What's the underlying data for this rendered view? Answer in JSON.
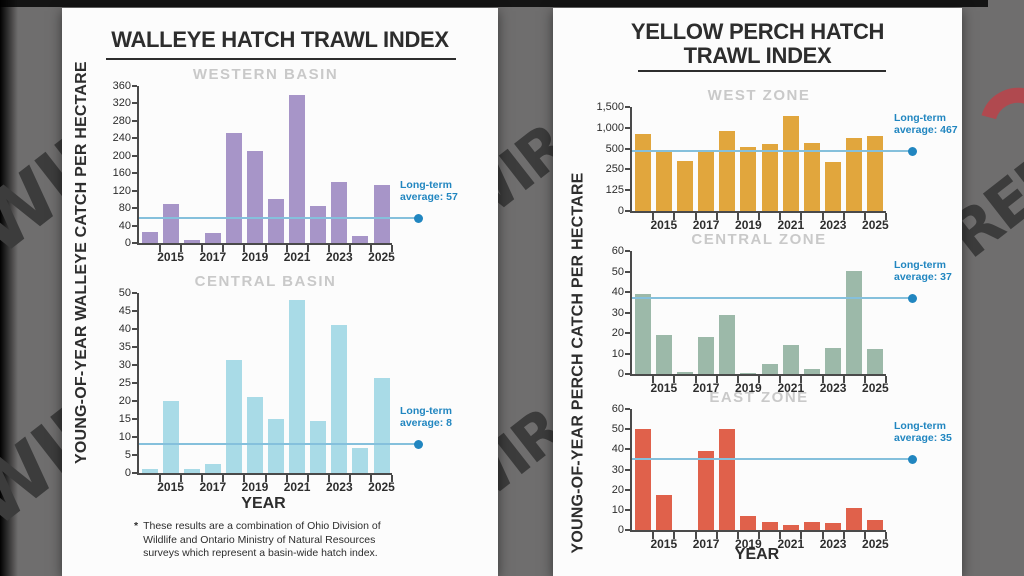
{
  "background": {
    "color": "#6f6e6e",
    "top_strip_color": "#141414",
    "watermark_text": "WIRED",
    "watermark_color": "#3c3c3c",
    "watermark_fragments": [
      "WIR",
      "WIR",
      "WIR",
      "WIR",
      "RED"
    ],
    "swoosh_color": "#b0494f"
  },
  "style": {
    "panel_bg": "#fcfcfc",
    "axis_color": "#4a4a4a",
    "text_dark": "#2d2d2d",
    "zone_title_color": "#c9c9c9",
    "avg_text_color": "#2186c0",
    "avg_line_color": "#85c0dc"
  },
  "left_panel": {
    "title": "WALLEYE HATCH TRAWL INDEX",
    "ylabel": "YOUNG-OF-YEAR WALLEYE CATCH PER HECTARE",
    "xlabel": "YEAR",
    "footnote_marker": "*",
    "footnote": "These results are a combination of Ohio Division of Wildlife and Ontario Ministry of Natural Resources surveys which represent a basin-wide hatch index."
  },
  "right_panel": {
    "title_line1": "YELLOW PERCH HATCH",
    "title_line2": "TRAWL INDEX",
    "ylabel": "YOUNG-OF-YEAR PERCH CATCH PER HECTARE",
    "xlabel": "YEAR"
  },
  "chart_data": [
    {
      "id": "western_basin",
      "type": "bar",
      "panel": "left",
      "title": "WESTERN BASIN",
      "x": [
        2014,
        2015,
        2016,
        2017,
        2018,
        2019,
        2020,
        2021,
        2022,
        2023,
        2024,
        2025
      ],
      "values": [
        26,
        90,
        7,
        24,
        253,
        212,
        100,
        340,
        85,
        140,
        15,
        132
      ],
      "scale": "linear",
      "ylim": [
        0,
        360
      ],
      "yticks": [
        0,
        40,
        80,
        120,
        160,
        200,
        240,
        280,
        320,
        360
      ],
      "ytick_labels": [
        "0",
        "40",
        "80",
        "120",
        "160",
        "200",
        "240",
        "280",
        "320",
        "360"
      ],
      "x_tick_labels": [
        "2015",
        "2017",
        "2019",
        "2021",
        "2023",
        "2025"
      ],
      "bar_color": "#a795c8",
      "average": {
        "value": 57,
        "label_lines": [
          "Long-term",
          "average: 57"
        ]
      }
    },
    {
      "id": "central_basin",
      "type": "bar",
      "panel": "left",
      "title": "CENTRAL BASIN",
      "x": [
        2014,
        2015,
        2016,
        2017,
        2018,
        2019,
        2020,
        2021,
        2022,
        2023,
        2024,
        2025
      ],
      "values": [
        1,
        20,
        1,
        2.5,
        31.5,
        21,
        15,
        48,
        14.5,
        41,
        7,
        26.5
      ],
      "scale": "linear",
      "ylim": [
        0,
        50
      ],
      "yticks": [
        0,
        5,
        10,
        15,
        20,
        25,
        30,
        35,
        40,
        45,
        50
      ],
      "ytick_labels": [
        "0",
        "5",
        "10",
        "15",
        "20",
        "25",
        "30",
        "35",
        "40",
        "45",
        "50"
      ],
      "x_tick_labels": [
        "2015",
        "2017",
        "2019",
        "2021",
        "2023",
        "2025"
      ],
      "bar_color": "#a9dbe7",
      "average": {
        "value": 8,
        "label_lines": [
          "Long-term",
          "average: 8"
        ]
      }
    },
    {
      "id": "west_zone",
      "type": "bar",
      "panel": "right",
      "title": "WEST ZONE",
      "x": [
        2014,
        2015,
        2016,
        2017,
        2018,
        2019,
        2020,
        2021,
        2022,
        2023,
        2024,
        2025
      ],
      "values": [
        850,
        483,
        351,
        471,
        923,
        546,
        603,
        1284,
        642,
        335,
        748,
        803
      ],
      "scale": "piecewise",
      "ylim": [
        0,
        1500
      ],
      "scale_stops": [
        0,
        125,
        250,
        500,
        1000,
        1500
      ],
      "yticks": [
        0,
        125,
        250,
        500,
        1000,
        1500
      ],
      "ytick_labels": [
        "0",
        "125",
        "250",
        "500",
        "1,000",
        "1,500"
      ],
      "x_tick_labels": [
        "2015",
        "2017",
        "2019",
        "2021",
        "2023",
        "2025"
      ],
      "bar_color": "#e1a63d",
      "average": {
        "value": 467,
        "label_lines": [
          "Long-term",
          "average: 467"
        ]
      }
    },
    {
      "id": "central_zone",
      "type": "bar",
      "panel": "right",
      "title": "CENTRAL ZONE",
      "x": [
        2014,
        2015,
        2016,
        2017,
        2018,
        2019,
        2020,
        2021,
        2022,
        2023,
        2024,
        2025
      ],
      "values": [
        39,
        19,
        1,
        18,
        29,
        0.5,
        5,
        14,
        2.5,
        12.5,
        50,
        12
      ],
      "scale": "linear",
      "ylim": [
        0,
        60
      ],
      "yticks": [
        0,
        10,
        20,
        30,
        40,
        50,
        60
      ],
      "ytick_labels": [
        "0",
        "10",
        "20",
        "30",
        "40",
        "50",
        "60"
      ],
      "x_tick_labels": [
        "2015",
        "2017",
        "2019",
        "2021",
        "2023",
        "2025"
      ],
      "bar_color": "#9cb9a9",
      "average": {
        "value": 37,
        "label_lines": [
          "Long-term",
          "average: 37"
        ]
      }
    },
    {
      "id": "east_zone",
      "type": "bar",
      "panel": "right",
      "title": "EAST ZONE",
      "x": [
        2014,
        2015,
        2016,
        2017,
        2018,
        2019,
        2020,
        2021,
        2022,
        2023,
        2024,
        2025
      ],
      "values": [
        50,
        17.5,
        0,
        39,
        50,
        7,
        4,
        2.5,
        4,
        3.5,
        11,
        5
      ],
      "scale": "linear",
      "ylim": [
        0,
        60
      ],
      "yticks": [
        0,
        10,
        20,
        30,
        40,
        50,
        60
      ],
      "ytick_labels": [
        "0",
        "10",
        "20",
        "30",
        "40",
        "50",
        "60"
      ],
      "x_tick_labels": [
        "2015",
        "2017",
        "2019",
        "2021",
        "2023",
        "2025"
      ],
      "bar_color": "#e0614b",
      "average": {
        "value": 35,
        "label_lines": [
          "Long-term",
          "average: 35"
        ]
      }
    }
  ]
}
